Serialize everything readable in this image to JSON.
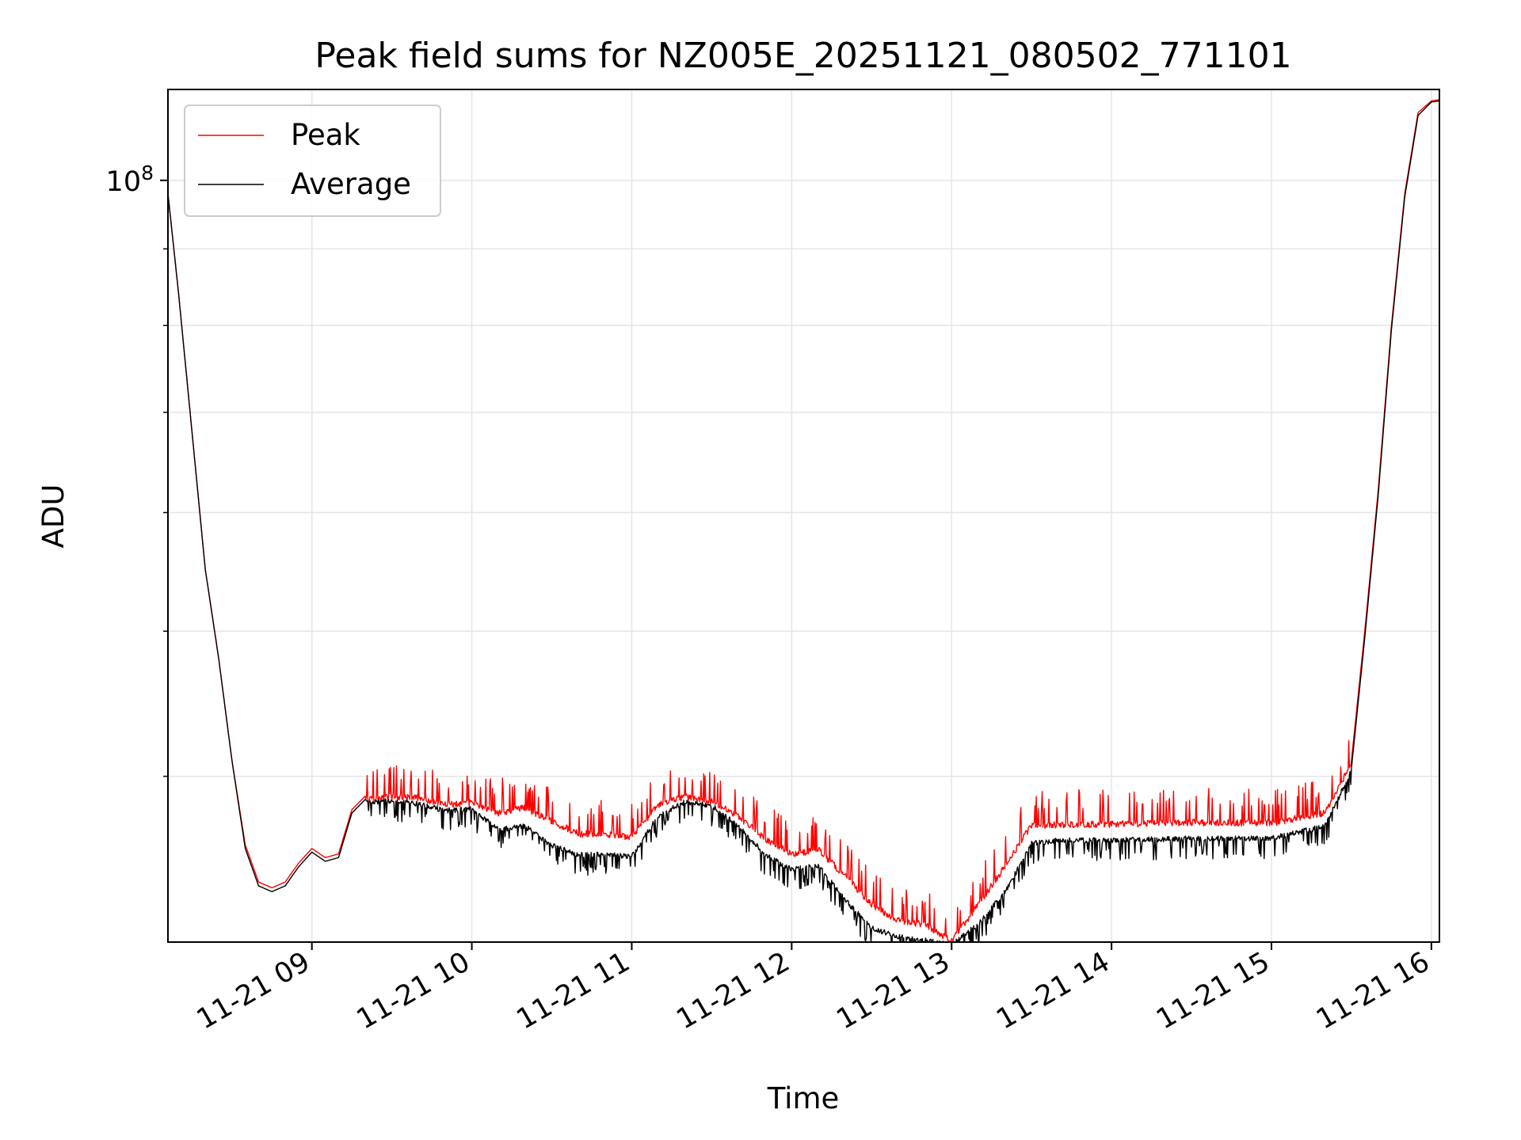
{
  "chart_data": {
    "type": "line",
    "title": "Peak field sums for NZ005E_20251121_080502_771101",
    "xlabel": "Time",
    "ylabel": "ADU",
    "y_scale": "log",
    "ylim": [
      31000000,
      115000000
    ],
    "xlim": [
      "2025-11-21 08:06",
      "2025-11-21 16:03"
    ],
    "grid": true,
    "legend_position": "top-left",
    "x_ticks": [
      "11-21 09",
      "11-21 10",
      "11-21 11",
      "11-21 12",
      "11-21 13",
      "11-21 14",
      "11-21 15",
      "11-21 16"
    ],
    "y_ticks": [
      {
        "label": "10",
        "exponent": "8",
        "value": 100000000
      }
    ],
    "y_minor_ticks": [
      40000000,
      50000000,
      60000000,
      70000000,
      80000000,
      90000000
    ],
    "series": [
      {
        "name": "Peak",
        "color": "#ff0000",
        "x": [
          "08:06",
          "08:10",
          "08:15",
          "08:20",
          "08:25",
          "08:30",
          "08:35",
          "08:40",
          "08:45",
          "08:50",
          "08:55",
          "09:00",
          "09:05",
          "09:10",
          "09:15",
          "09:20",
          "09:25",
          "09:30",
          "09:40",
          "09:50",
          "10:00",
          "10:10",
          "10:20",
          "10:30",
          "10:40",
          "10:50",
          "11:00",
          "11:10",
          "11:20",
          "11:30",
          "11:40",
          "11:50",
          "12:00",
          "12:10",
          "12:20",
          "12:30",
          "12:40",
          "12:50",
          "13:00",
          "13:10",
          "13:20",
          "13:30",
          "13:40",
          "14:00",
          "14:30",
          "15:00",
          "15:20",
          "15:30",
          "15:35",
          "15:40",
          "15:45",
          "15:50",
          "15:55",
          "16:00",
          "16:03"
        ],
        "values": [
          98000000,
          84000000,
          68000000,
          55000000,
          48000000,
          41000000,
          36000000,
          34000000,
          33700000,
          34000000,
          35000000,
          35800000,
          35300000,
          35500000,
          38000000,
          38800000,
          38900000,
          38950000,
          38900000,
          38500000,
          38600000,
          38000000,
          38300000,
          37500000,
          36800000,
          36800000,
          36600000,
          38500000,
          38950000,
          38700000,
          37800000,
          36500000,
          35700000,
          35900000,
          34500000,
          33000000,
          32200000,
          32000000,
          31200000,
          33000000,
          35000000,
          37300000,
          37300000,
          37350000,
          37450000,
          37400000,
          38000000,
          41000000,
          50000000,
          62000000,
          80000000,
          98000000,
          111000000,
          113000000,
          113200000
        ]
      },
      {
        "name": "Average",
        "color": "#000000",
        "x": [
          "08:06",
          "08:10",
          "08:15",
          "08:20",
          "08:25",
          "08:30",
          "08:35",
          "08:40",
          "08:45",
          "08:50",
          "08:55",
          "09:00",
          "09:05",
          "09:10",
          "09:15",
          "09:20",
          "09:25",
          "09:30",
          "09:40",
          "09:50",
          "10:00",
          "10:10",
          "10:20",
          "10:30",
          "10:40",
          "10:50",
          "11:00",
          "11:10",
          "11:20",
          "11:30",
          "11:40",
          "11:50",
          "12:00",
          "12:10",
          "12:20",
          "12:30",
          "12:40",
          "12:50",
          "13:00",
          "13:10",
          "13:20",
          "13:30",
          "13:40",
          "14:00",
          "14:30",
          "15:00",
          "15:20",
          "15:30",
          "15:35",
          "15:40",
          "15:45",
          "15:50",
          "15:55",
          "16:00",
          "16:03"
        ],
        "values": [
          98000000,
          84000000,
          68000000,
          55000000,
          48000000,
          41000000,
          35800000,
          33800000,
          33500000,
          33800000,
          34800000,
          35600000,
          35100000,
          35300000,
          37800000,
          38600000,
          38600000,
          38700000,
          38500000,
          38100000,
          38200000,
          37000000,
          37200000,
          36100000,
          35600000,
          35600000,
          35500000,
          37800000,
          38600000,
          38400000,
          37200000,
          35600000,
          34800000,
          35000000,
          33200000,
          31800000,
          31400000,
          31200000,
          31000000,
          32000000,
          33600000,
          36200000,
          36400000,
          36400000,
          36500000,
          36500000,
          37200000,
          40500000,
          49500000,
          61500000,
          79500000,
          97500000,
          110500000,
          112800000,
          113000000
        ]
      }
    ]
  }
}
